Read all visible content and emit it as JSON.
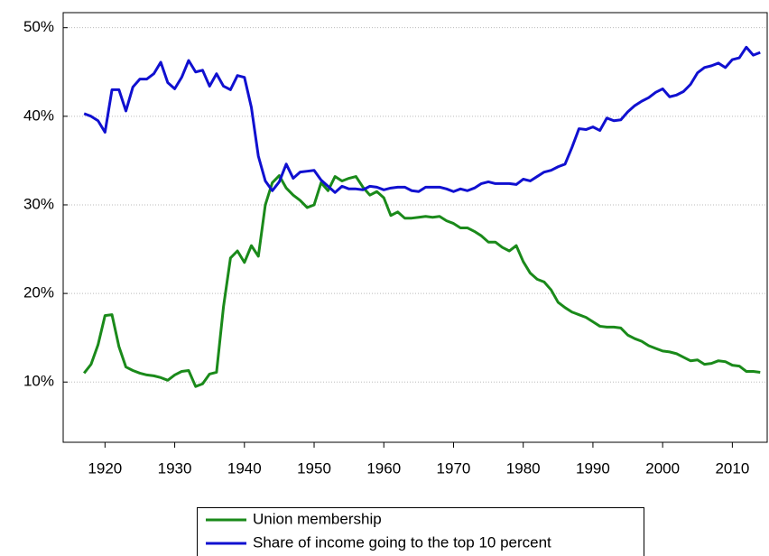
{
  "chart_data": {
    "type": "line",
    "x": [
      1917,
      1918,
      1919,
      1920,
      1921,
      1922,
      1923,
      1924,
      1925,
      1926,
      1927,
      1928,
      1929,
      1930,
      1931,
      1932,
      1933,
      1934,
      1935,
      1936,
      1937,
      1938,
      1939,
      1940,
      1941,
      1942,
      1943,
      1944,
      1945,
      1946,
      1947,
      1948,
      1949,
      1950,
      1951,
      1952,
      1953,
      1954,
      1955,
      1956,
      1957,
      1958,
      1959,
      1960,
      1961,
      1962,
      1963,
      1964,
      1965,
      1966,
      1967,
      1968,
      1969,
      1970,
      1971,
      1972,
      1973,
      1974,
      1975,
      1976,
      1977,
      1978,
      1979,
      1980,
      1981,
      1982,
      1983,
      1984,
      1985,
      1986,
      1987,
      1988,
      1989,
      1990,
      1991,
      1992,
      1993,
      1994,
      1995,
      1996,
      1997,
      1998,
      1999,
      2000,
      2001,
      2002,
      2003,
      2004,
      2005,
      2006,
      2007,
      2008,
      2009,
      2010,
      2011,
      2012,
      2013,
      2014
    ],
    "series": [
      {
        "name": "Union membership",
        "color": "#1a8a1a",
        "values": [
          11.0,
          12.0,
          14.2,
          17.5,
          17.6,
          14.0,
          11.7,
          11.3,
          11.0,
          10.8,
          10.7,
          10.5,
          10.2,
          10.8,
          11.2,
          11.3,
          9.5,
          9.8,
          10.9,
          11.1,
          18.5,
          24.0,
          24.8,
          23.5,
          25.4,
          24.2,
          30.0,
          32.5,
          33.3,
          31.9,
          31.1,
          30.5,
          29.7,
          30.0,
          32.5,
          31.6,
          33.2,
          32.7,
          33.0,
          33.2,
          32.0,
          31.1,
          31.5,
          30.8,
          28.8,
          29.2,
          28.5,
          28.5,
          28.6,
          28.7,
          28.6,
          28.7,
          28.2,
          27.9,
          27.4,
          27.4,
          27.0,
          26.5,
          25.8,
          25.8,
          25.2,
          24.8,
          25.4,
          23.6,
          22.3,
          21.6,
          21.3,
          20.4,
          19.0,
          18.4,
          17.9,
          17.6,
          17.3,
          16.8,
          16.3,
          16.2,
          16.2,
          16.1,
          15.3,
          14.9,
          14.6,
          14.1,
          13.8,
          13.5,
          13.4,
          13.2,
          12.8,
          12.4,
          12.5,
          12.0,
          12.1,
          12.4,
          12.3,
          11.9,
          11.8,
          11.2,
          11.2,
          11.1
        ]
      },
      {
        "name": "Share of income going to the top 10 percent",
        "color": "#1010d0",
        "values": [
          40.3,
          40.0,
          39.5,
          38.2,
          43.0,
          43.0,
          40.6,
          43.3,
          44.2,
          44.2,
          44.8,
          46.1,
          43.8,
          43.1,
          44.4,
          46.3,
          45.0,
          45.2,
          43.4,
          44.8,
          43.4,
          43.0,
          44.6,
          44.4,
          41.0,
          35.5,
          32.7,
          31.6,
          32.6,
          34.6,
          33.0,
          33.7,
          33.8,
          33.9,
          32.8,
          32.1,
          31.4,
          32.1,
          31.8,
          31.8,
          31.7,
          32.1,
          32.0,
          31.7,
          31.9,
          32.0,
          32.0,
          31.6,
          31.5,
          32.0,
          32.0,
          32.0,
          31.8,
          31.5,
          31.8,
          31.6,
          31.9,
          32.4,
          32.6,
          32.4,
          32.4,
          32.4,
          32.3,
          32.9,
          32.7,
          33.2,
          33.7,
          33.9,
          34.3,
          34.6,
          36.5,
          38.6,
          38.5,
          38.8,
          38.4,
          39.8,
          39.5,
          39.6,
          40.5,
          41.2,
          41.7,
          42.1,
          42.7,
          43.1,
          42.2,
          42.4,
          42.8,
          43.6,
          44.9,
          45.5,
          45.7,
          46.0,
          45.5,
          46.4,
          46.6,
          47.8,
          46.9,
          47.2
        ]
      }
    ],
    "xlim": [
      1914,
      2015
    ],
    "xticks": [
      1920,
      1930,
      1940,
      1950,
      1960,
      1970,
      1980,
      1990,
      2000,
      2010
    ],
    "ylim": [
      3.2,
      51.7
    ],
    "yticks": [
      {
        "value": 10,
        "label": "10%"
      },
      {
        "value": 20,
        "label": "20%"
      },
      {
        "value": 30,
        "label": "30%"
      },
      {
        "value": 40,
        "label": "40%"
      },
      {
        "value": 50,
        "label": "50%"
      }
    ],
    "grid": true,
    "legend": "bottom"
  }
}
